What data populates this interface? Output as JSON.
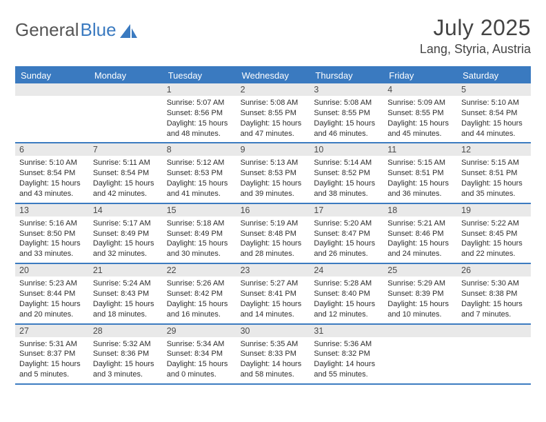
{
  "logo": {
    "textGray": "General",
    "textBlue": "Blue"
  },
  "title": "July 2025",
  "location": "Lang, Styria, Austria",
  "colors": {
    "accent": "#3a7ac0",
    "headerText": "#ffffff",
    "dayNumBg": "#e9e9e9",
    "bodyText": "#2c2c2c",
    "pageBg": "#ffffff"
  },
  "dow": [
    "Sunday",
    "Monday",
    "Tuesday",
    "Wednesday",
    "Thursday",
    "Friday",
    "Saturday"
  ],
  "weeks": [
    [
      {
        "n": "",
        "sunrise": "",
        "sunset": "",
        "daylight": ""
      },
      {
        "n": "",
        "sunrise": "",
        "sunset": "",
        "daylight": ""
      },
      {
        "n": "1",
        "sunrise": "Sunrise: 5:07 AM",
        "sunset": "Sunset: 8:56 PM",
        "daylight": "Daylight: 15 hours and 48 minutes."
      },
      {
        "n": "2",
        "sunrise": "Sunrise: 5:08 AM",
        "sunset": "Sunset: 8:55 PM",
        "daylight": "Daylight: 15 hours and 47 minutes."
      },
      {
        "n": "3",
        "sunrise": "Sunrise: 5:08 AM",
        "sunset": "Sunset: 8:55 PM",
        "daylight": "Daylight: 15 hours and 46 minutes."
      },
      {
        "n": "4",
        "sunrise": "Sunrise: 5:09 AM",
        "sunset": "Sunset: 8:55 PM",
        "daylight": "Daylight: 15 hours and 45 minutes."
      },
      {
        "n": "5",
        "sunrise": "Sunrise: 5:10 AM",
        "sunset": "Sunset: 8:54 PM",
        "daylight": "Daylight: 15 hours and 44 minutes."
      }
    ],
    [
      {
        "n": "6",
        "sunrise": "Sunrise: 5:10 AM",
        "sunset": "Sunset: 8:54 PM",
        "daylight": "Daylight: 15 hours and 43 minutes."
      },
      {
        "n": "7",
        "sunrise": "Sunrise: 5:11 AM",
        "sunset": "Sunset: 8:54 PM",
        "daylight": "Daylight: 15 hours and 42 minutes."
      },
      {
        "n": "8",
        "sunrise": "Sunrise: 5:12 AM",
        "sunset": "Sunset: 8:53 PM",
        "daylight": "Daylight: 15 hours and 41 minutes."
      },
      {
        "n": "9",
        "sunrise": "Sunrise: 5:13 AM",
        "sunset": "Sunset: 8:53 PM",
        "daylight": "Daylight: 15 hours and 39 minutes."
      },
      {
        "n": "10",
        "sunrise": "Sunrise: 5:14 AM",
        "sunset": "Sunset: 8:52 PM",
        "daylight": "Daylight: 15 hours and 38 minutes."
      },
      {
        "n": "11",
        "sunrise": "Sunrise: 5:15 AM",
        "sunset": "Sunset: 8:51 PM",
        "daylight": "Daylight: 15 hours and 36 minutes."
      },
      {
        "n": "12",
        "sunrise": "Sunrise: 5:15 AM",
        "sunset": "Sunset: 8:51 PM",
        "daylight": "Daylight: 15 hours and 35 minutes."
      }
    ],
    [
      {
        "n": "13",
        "sunrise": "Sunrise: 5:16 AM",
        "sunset": "Sunset: 8:50 PM",
        "daylight": "Daylight: 15 hours and 33 minutes."
      },
      {
        "n": "14",
        "sunrise": "Sunrise: 5:17 AM",
        "sunset": "Sunset: 8:49 PM",
        "daylight": "Daylight: 15 hours and 32 minutes."
      },
      {
        "n": "15",
        "sunrise": "Sunrise: 5:18 AM",
        "sunset": "Sunset: 8:49 PM",
        "daylight": "Daylight: 15 hours and 30 minutes."
      },
      {
        "n": "16",
        "sunrise": "Sunrise: 5:19 AM",
        "sunset": "Sunset: 8:48 PM",
        "daylight": "Daylight: 15 hours and 28 minutes."
      },
      {
        "n": "17",
        "sunrise": "Sunrise: 5:20 AM",
        "sunset": "Sunset: 8:47 PM",
        "daylight": "Daylight: 15 hours and 26 minutes."
      },
      {
        "n": "18",
        "sunrise": "Sunrise: 5:21 AM",
        "sunset": "Sunset: 8:46 PM",
        "daylight": "Daylight: 15 hours and 24 minutes."
      },
      {
        "n": "19",
        "sunrise": "Sunrise: 5:22 AM",
        "sunset": "Sunset: 8:45 PM",
        "daylight": "Daylight: 15 hours and 22 minutes."
      }
    ],
    [
      {
        "n": "20",
        "sunrise": "Sunrise: 5:23 AM",
        "sunset": "Sunset: 8:44 PM",
        "daylight": "Daylight: 15 hours and 20 minutes."
      },
      {
        "n": "21",
        "sunrise": "Sunrise: 5:24 AM",
        "sunset": "Sunset: 8:43 PM",
        "daylight": "Daylight: 15 hours and 18 minutes."
      },
      {
        "n": "22",
        "sunrise": "Sunrise: 5:26 AM",
        "sunset": "Sunset: 8:42 PM",
        "daylight": "Daylight: 15 hours and 16 minutes."
      },
      {
        "n": "23",
        "sunrise": "Sunrise: 5:27 AM",
        "sunset": "Sunset: 8:41 PM",
        "daylight": "Daylight: 15 hours and 14 minutes."
      },
      {
        "n": "24",
        "sunrise": "Sunrise: 5:28 AM",
        "sunset": "Sunset: 8:40 PM",
        "daylight": "Daylight: 15 hours and 12 minutes."
      },
      {
        "n": "25",
        "sunrise": "Sunrise: 5:29 AM",
        "sunset": "Sunset: 8:39 PM",
        "daylight": "Daylight: 15 hours and 10 minutes."
      },
      {
        "n": "26",
        "sunrise": "Sunrise: 5:30 AM",
        "sunset": "Sunset: 8:38 PM",
        "daylight": "Daylight: 15 hours and 7 minutes."
      }
    ],
    [
      {
        "n": "27",
        "sunrise": "Sunrise: 5:31 AM",
        "sunset": "Sunset: 8:37 PM",
        "daylight": "Daylight: 15 hours and 5 minutes."
      },
      {
        "n": "28",
        "sunrise": "Sunrise: 5:32 AM",
        "sunset": "Sunset: 8:36 PM",
        "daylight": "Daylight: 15 hours and 3 minutes."
      },
      {
        "n": "29",
        "sunrise": "Sunrise: 5:34 AM",
        "sunset": "Sunset: 8:34 PM",
        "daylight": "Daylight: 15 hours and 0 minutes."
      },
      {
        "n": "30",
        "sunrise": "Sunrise: 5:35 AM",
        "sunset": "Sunset: 8:33 PM",
        "daylight": "Daylight: 14 hours and 58 minutes."
      },
      {
        "n": "31",
        "sunrise": "Sunrise: 5:36 AM",
        "sunset": "Sunset: 8:32 PM",
        "daylight": "Daylight: 14 hours and 55 minutes."
      },
      {
        "n": "",
        "sunrise": "",
        "sunset": "",
        "daylight": ""
      },
      {
        "n": "",
        "sunrise": "",
        "sunset": "",
        "daylight": ""
      }
    ]
  ]
}
